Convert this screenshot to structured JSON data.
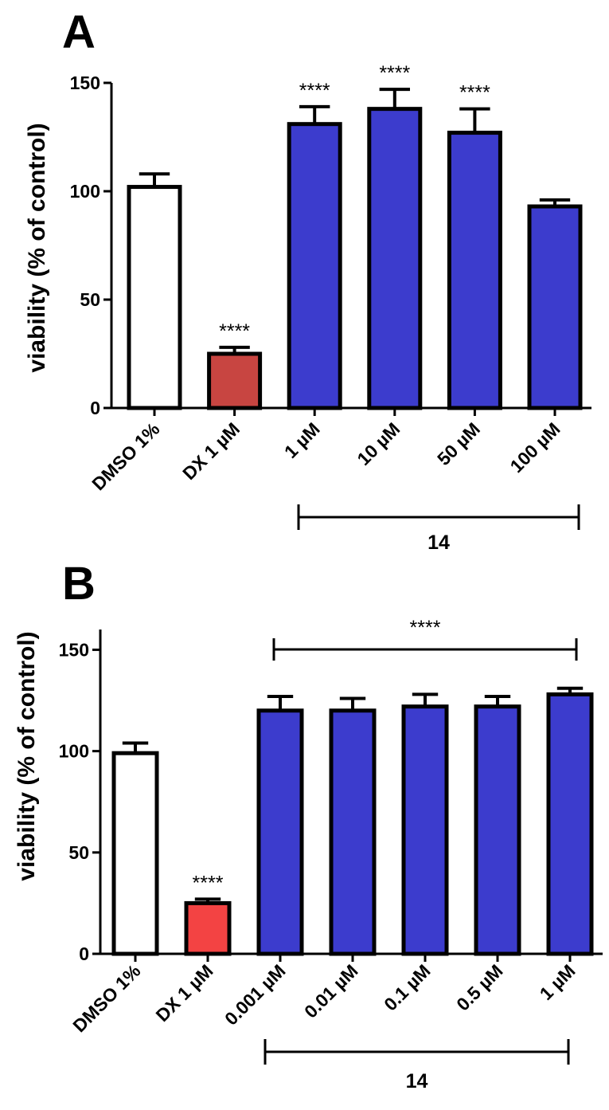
{
  "chart_data": [
    {
      "panel": "A",
      "type": "bar",
      "ylabel": "viability (% of control)",
      "ylim": [
        0,
        150
      ],
      "yticks": [
        0,
        50,
        100,
        150
      ],
      "categories": [
        "DMSO 1%",
        "DX 1 µM",
        "1 µM",
        "10 µM",
        "50 µM",
        "100 µM"
      ],
      "values": [
        102,
        25,
        131,
        138,
        127,
        93
      ],
      "errors": [
        6,
        3,
        8,
        9,
        11,
        3
      ],
      "colors": [
        "#ffffff",
        "#c84541",
        "#3c3ccd",
        "#3c3ccd",
        "#3c3ccd",
        "#3c3ccd"
      ],
      "significance": [
        "",
        "****",
        "****",
        "****",
        "****",
        ""
      ],
      "group": {
        "label": "14",
        "from": 2,
        "to": 5
      }
    },
    {
      "panel": "B",
      "type": "bar",
      "ylabel": "viability (% of control)",
      "ylim": [
        0,
        160
      ],
      "yticks": [
        0,
        50,
        100,
        150
      ],
      "categories": [
        "DMSO 1%",
        "DX 1 µM",
        "0.001 µM",
        "0.01 µM",
        "0.1 µM",
        "0.5 µM",
        "1 µM"
      ],
      "values": [
        99,
        25,
        120,
        120,
        122,
        122,
        128
      ],
      "errors": [
        5,
        2,
        7,
        6,
        6,
        5,
        3
      ],
      "colors": [
        "#ffffff",
        "#f34343",
        "#3c3ccd",
        "#3c3ccd",
        "#3c3ccd",
        "#3c3ccd",
        "#3c3ccd"
      ],
      "significance": [
        "",
        "****",
        "",
        "",
        "",
        "",
        ""
      ],
      "top_bracket": {
        "label": "****",
        "from": 2,
        "to": 6
      },
      "group": {
        "label": "14",
        "from": 2,
        "to": 6
      }
    }
  ]
}
